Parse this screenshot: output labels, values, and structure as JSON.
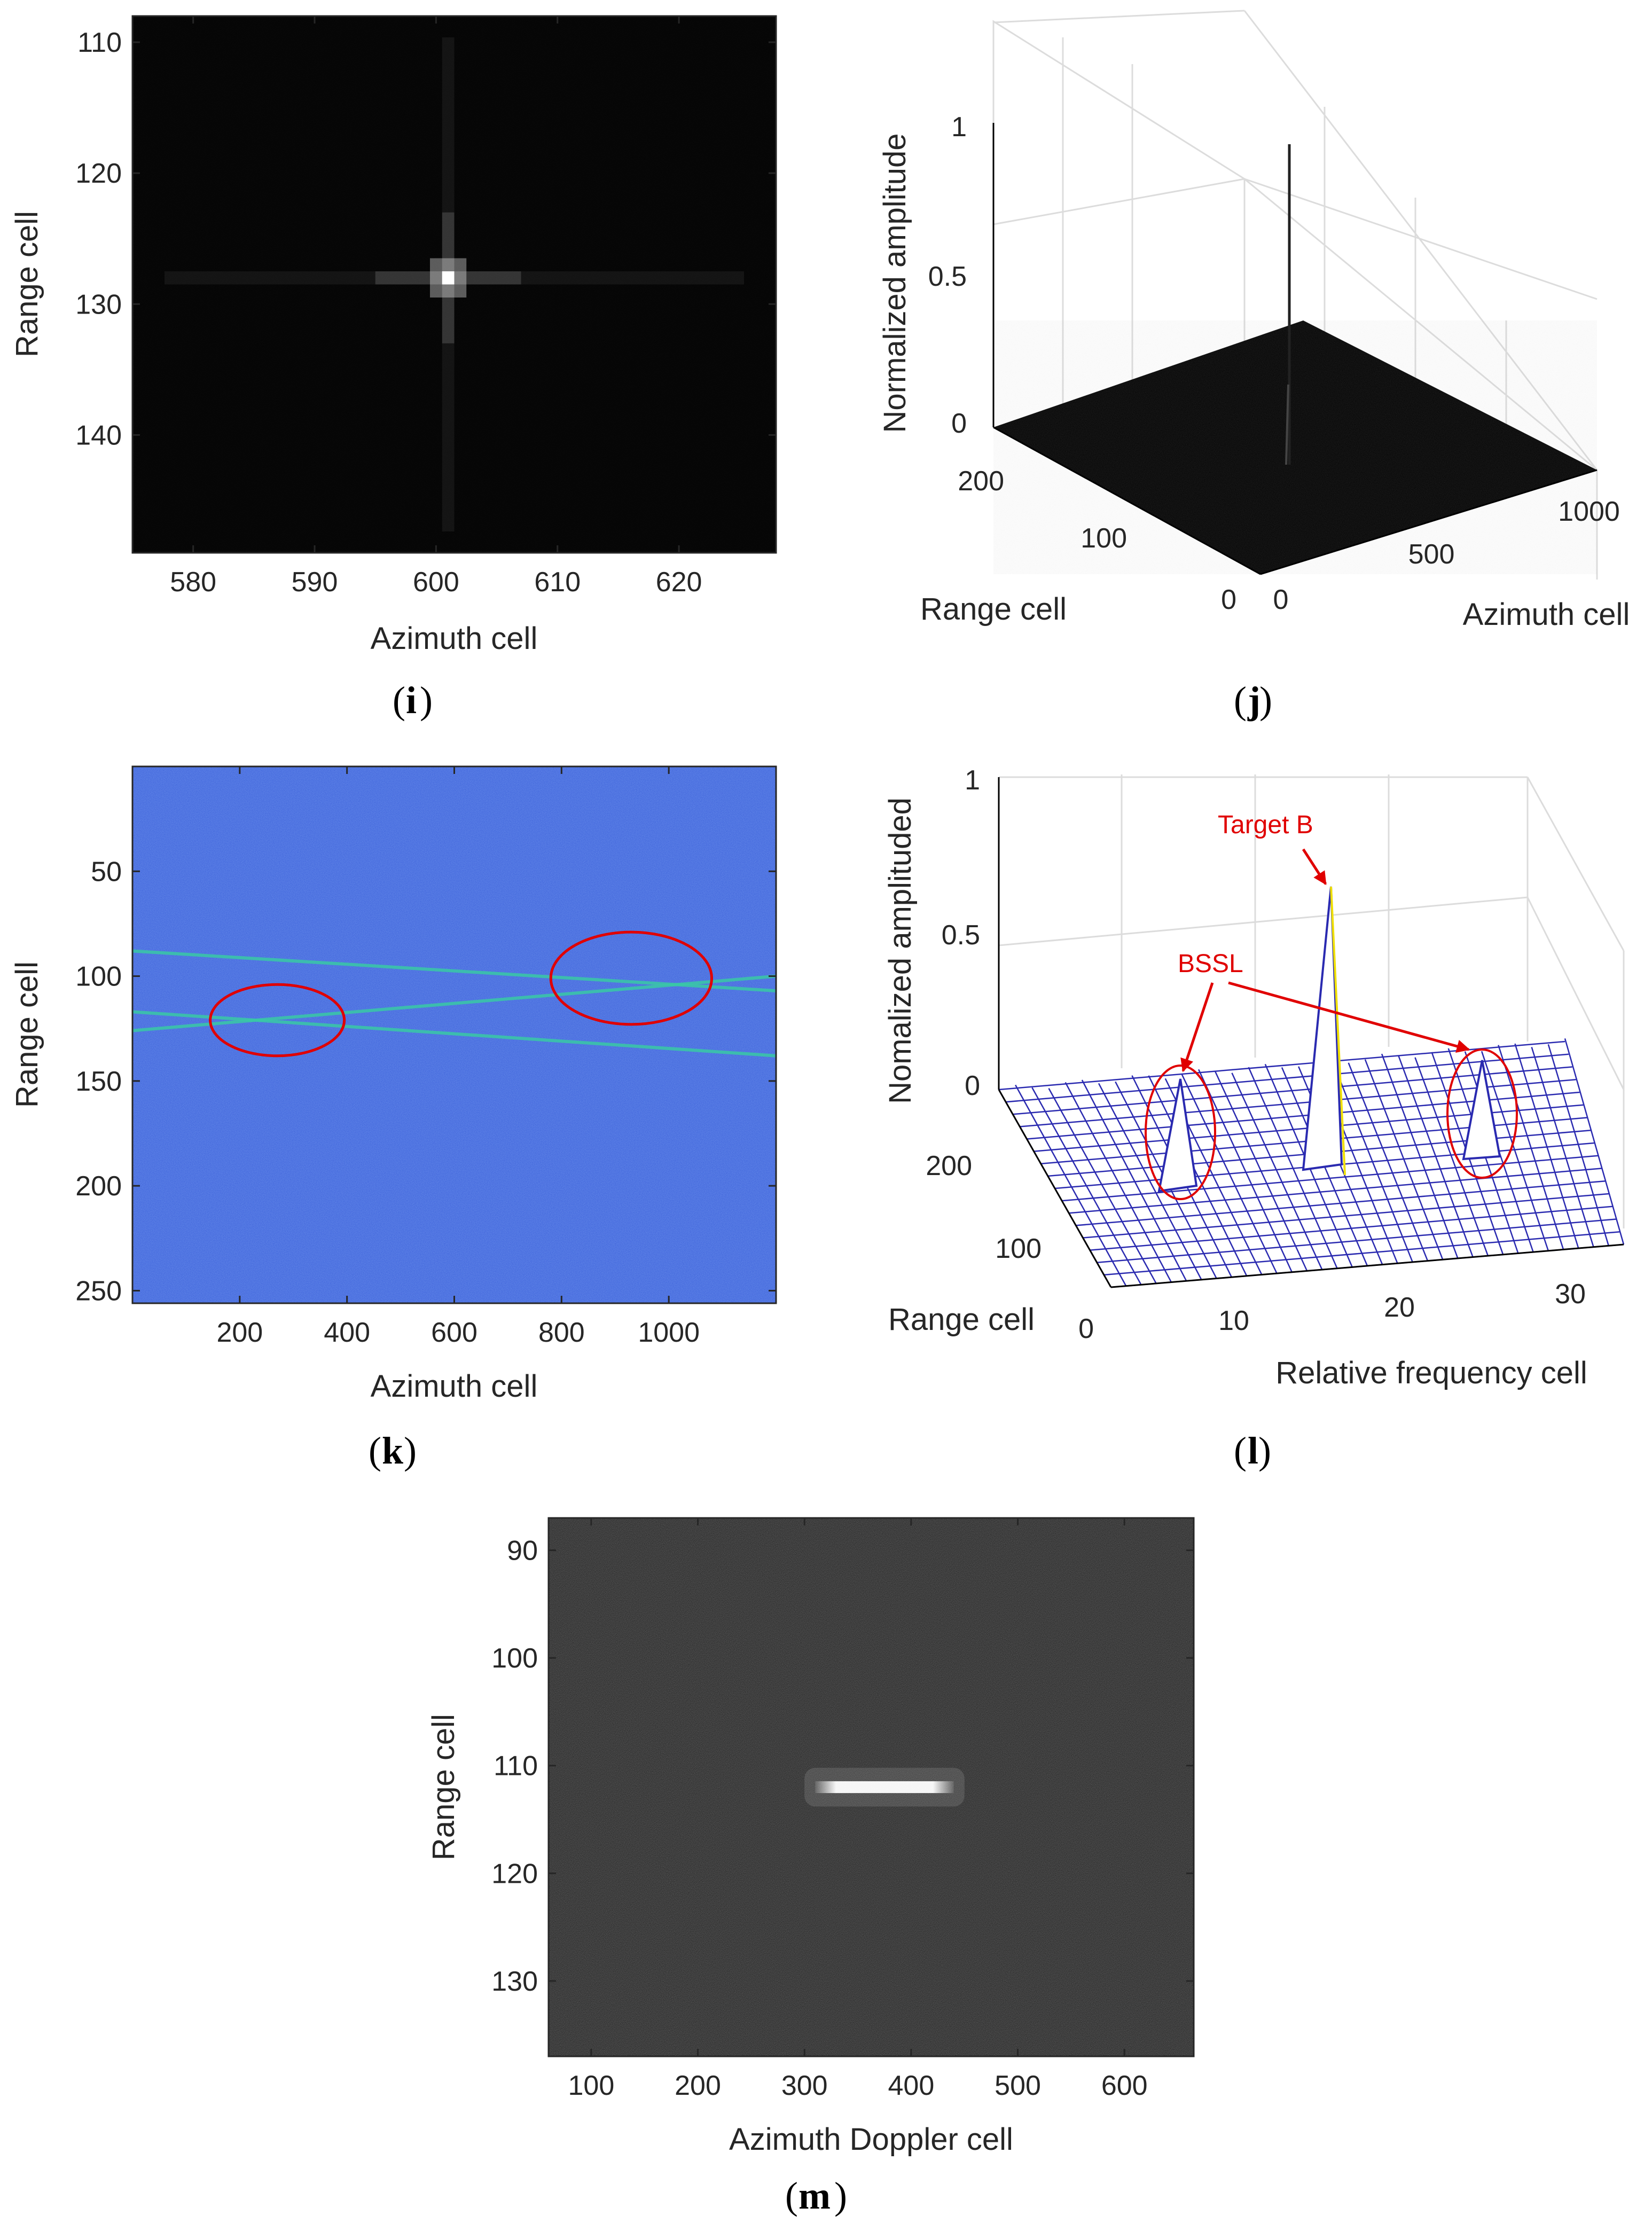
{
  "chart_data": [
    {
      "panel": "(i)",
      "caption_letter": "i",
      "type": "heatmap",
      "colormap": "gray",
      "xlabel": "Azimuth cell",
      "ylabel": "Range cell",
      "xlim": [
        575,
        628
      ],
      "ylim": [
        108,
        149
      ],
      "xticks": [
        580,
        590,
        600,
        610,
        620
      ],
      "yticks": [
        110,
        120,
        130,
        140
      ],
      "peak": {
        "x": 601,
        "y": 128
      }
    },
    {
      "panel": "(j)",
      "caption_letter": "j",
      "type": "surface",
      "zlabel": "Normalized amplitude",
      "xlabel": "Range cell",
      "ylabel": "Azimuth cell",
      "zticks": [
        "0",
        "0.5",
        "1"
      ],
      "range_ticks": [
        "0",
        "100",
        "200"
      ],
      "azimuth_ticks": [
        "0",
        "500",
        "1000"
      ],
      "peak": {
        "range": 128,
        "azimuth": 601,
        "amplitude": 1
      }
    },
    {
      "panel": "(k)",
      "caption_letter": "k",
      "type": "heatmap",
      "colormap": "parula",
      "xlabel": "Azimuth cell",
      "ylabel": "Range cell",
      "xlim": [
        0,
        1200
      ],
      "ylim": [
        0,
        256
      ],
      "xticks": [
        200,
        400,
        600,
        800,
        1000
      ],
      "yticks": [
        50,
        100,
        150,
        200,
        250
      ],
      "tracks": [
        {
          "x": [
            0,
            1200
          ],
          "y": [
            88,
            107
          ]
        },
        {
          "x": [
            0,
            1200
          ],
          "y": [
            117,
            138
          ]
        },
        {
          "x": [
            0,
            1200
          ],
          "y": [
            126,
            100
          ]
        }
      ],
      "highlights": [
        {
          "cx": 270,
          "cy": 121,
          "rx": 125,
          "ry": 17
        },
        {
          "cx": 930,
          "cy": 101,
          "rx": 150,
          "ry": 22
        }
      ]
    },
    {
      "panel": "(l)",
      "caption_letter": "l",
      "type": "surface",
      "zlabel": "Nomalized amplituded",
      "xlabel": "Relative frequency cell",
      "ylabel": "Range cell",
      "zticks": [
        "0",
        "0.5",
        "1"
      ],
      "freq_ticks": [
        "10",
        "20",
        "30"
      ],
      "range_ticks": [
        "0",
        "100",
        "200"
      ],
      "annotations": [
        {
          "text": "Target B",
          "frequency": 17,
          "amplitude": 0.7
        },
        {
          "text": "BSSL",
          "frequency": 6,
          "amplitude": 0.22
        },
        {
          "text": "BSSL",
          "frequency": 28,
          "amplitude": 0.22
        }
      ]
    },
    {
      "panel": "(m)",
      "caption_letter": "m",
      "type": "heatmap",
      "colormap": "gray",
      "xlabel": "Azimuth Doppler cell",
      "ylabel": "Range cell",
      "xlim": [
        60,
        665
      ],
      "ylim": [
        87,
        137
      ],
      "xticks": [
        100,
        200,
        300,
        400,
        500,
        600
      ],
      "yticks": [
        90,
        100,
        110,
        120,
        130
      ],
      "streak": {
        "x_start": 310,
        "x_end": 440,
        "y": 112
      }
    }
  ],
  "captions": {
    "open": "(",
    "close": ")"
  }
}
